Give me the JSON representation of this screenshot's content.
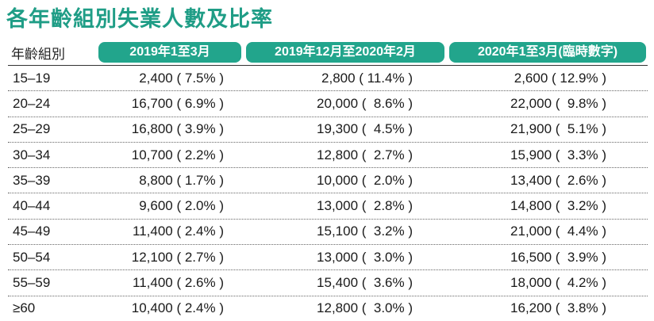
{
  "title": "各年齡組別失業人數及比率",
  "headers": {
    "age": "年齡組別",
    "col1": "2019年1至3月",
    "col2": "2019年12月至2020年2月",
    "col3": "2020年1至3月(臨時數字)"
  },
  "rows": [
    {
      "age": "15–19",
      "c1": "2,400 ( 7.5% )",
      "c2": "2,800 ( 11.4% )",
      "c3": "2,600 ( 12.9% )"
    },
    {
      "age": "20–24",
      "c1": "16,700 ( 6.9% )",
      "c2": "20,000 (  8.6% )",
      "c3": "22,000 (  9.8% )"
    },
    {
      "age": "25–29",
      "c1": "16,800 ( 3.9% )",
      "c2": "19,300 (  4.5% )",
      "c3": "21,900 (  5.1% )"
    },
    {
      "age": "30–34",
      "c1": "10,700 ( 2.2% )",
      "c2": "12,800 (  2.7% )",
      "c3": "15,900 (  3.3% )"
    },
    {
      "age": "35–39",
      "c1": "8,800 ( 1.7% )",
      "c2": "10,000 (  2.0% )",
      "c3": "13,400 (  2.6% )"
    },
    {
      "age": "40–44",
      "c1": "9,600 ( 2.0% )",
      "c2": "13,000 (  2.8% )",
      "c3": "14,800 (  3.2% )"
    },
    {
      "age": "45–49",
      "c1": "11,400 ( 2.4% )",
      "c2": "15,100 (  3.2% )",
      "c3": "21,000 (  4.4% )"
    },
    {
      "age": "50–54",
      "c1": "12,100 ( 2.7% )",
      "c2": "13,000 (  3.0% )",
      "c3": "16,500 (  3.9% )"
    },
    {
      "age": "55–59",
      "c1": "11,400 ( 2.6% )",
      "c2": "15,400 (  3.6% )",
      "c3": "18,000 (  4.2% )"
    },
    {
      "age": "≥60",
      "c1": "10,400 ( 2.4% )",
      "c2": "12,800 (  3.0% )",
      "c3": "16,200 (  3.8% )"
    }
  ],
  "colors": {
    "title": "#1f9d86",
    "header_pill": "#22a58c"
  }
}
